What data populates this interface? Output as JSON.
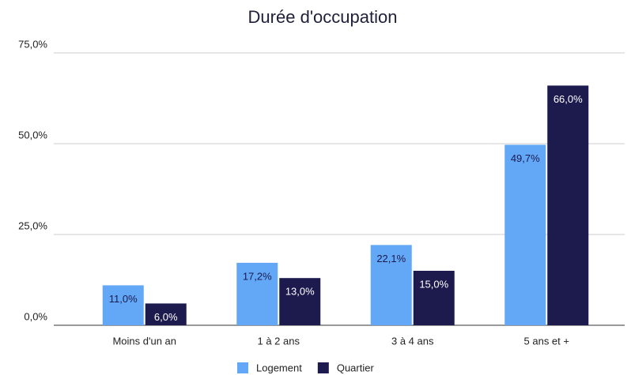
{
  "chart_data": {
    "type": "bar",
    "title": "Durée d'occupation",
    "categories": [
      "Moins d'un an",
      "1 à 2 ans",
      "3 à 4 ans",
      "5 ans et +"
    ],
    "series": [
      {
        "name": "Logement",
        "color": "#62a8f7",
        "values": [
          11.0,
          17.2,
          22.1,
          49.7
        ],
        "value_labels": [
          "11,0%",
          "17,2%",
          "22,1%",
          "49,7%"
        ]
      },
      {
        "name": "Quartier",
        "color": "#1d1a4e",
        "values": [
          6.0,
          13.0,
          15.0,
          66.0
        ],
        "value_labels": [
          "6,0%",
          "13,0%",
          "15,0%",
          "66,0%"
        ]
      }
    ],
    "ylim": [
      0,
      75
    ],
    "yticks": [
      {
        "value": 0,
        "label": "0,0%"
      },
      {
        "value": 25,
        "label": "25,0%"
      },
      {
        "value": 50,
        "label": "50,0%"
      },
      {
        "value": 75,
        "label": "75,0%"
      }
    ],
    "grid": true,
    "legend": "bottom"
  }
}
